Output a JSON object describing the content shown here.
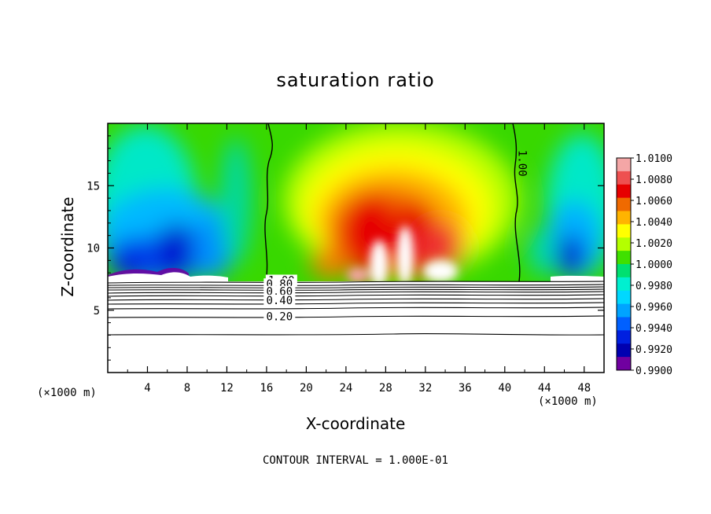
{
  "chart_data": {
    "type": "heatmap",
    "title": "saturation ratio",
    "xlabel": "X-coordinate",
    "ylabel": "Z-coordinate",
    "x_unit_label": "(×1000 m)",
    "x_unit_label_right": "(×1000 m)",
    "xlim": [
      0,
      50
    ],
    "ylim": [
      0,
      20
    ],
    "x_ticks": [
      4,
      8,
      12,
      16,
      20,
      24,
      28,
      32,
      36,
      40,
      44,
      48
    ],
    "y_ticks": [
      5,
      10,
      15
    ],
    "colorbar": {
      "labels": [
        "1.0100",
        "1.0080",
        "1.0060",
        "1.0040",
        "1.0020",
        "1.0000",
        "0.9980",
        "0.9960",
        "0.9940",
        "0.9920",
        "0.9900"
      ],
      "colors": [
        "#f4a6a6",
        "#ee5050",
        "#e60000",
        "#f06a00",
        "#ffb400",
        "#ffff00",
        "#b4ff00",
        "#40e000",
        "#00e070",
        "#00f0d0",
        "#00d8ff",
        "#00a4ff",
        "#0060ff",
        "#0020e0",
        "#0000b0",
        "#7000a0"
      ]
    },
    "contour_labels": [
      {
        "text": "1.00",
        "x": 17.5,
        "y": 7.1
      },
      {
        "text": "0.80",
        "x": 17.3,
        "y": 6.8
      },
      {
        "text": "0.60",
        "x": 17.3,
        "y": 6.2
      },
      {
        "text": "0.40",
        "x": 17.3,
        "y": 5.5
      },
      {
        "text": "0.20",
        "x": 17.3,
        "y": 4.2
      },
      {
        "text": "1.00",
        "x": 41.4,
        "y": 16.8
      }
    ],
    "footer": "CONTOUR INTERVAL = 1.000E-01"
  }
}
